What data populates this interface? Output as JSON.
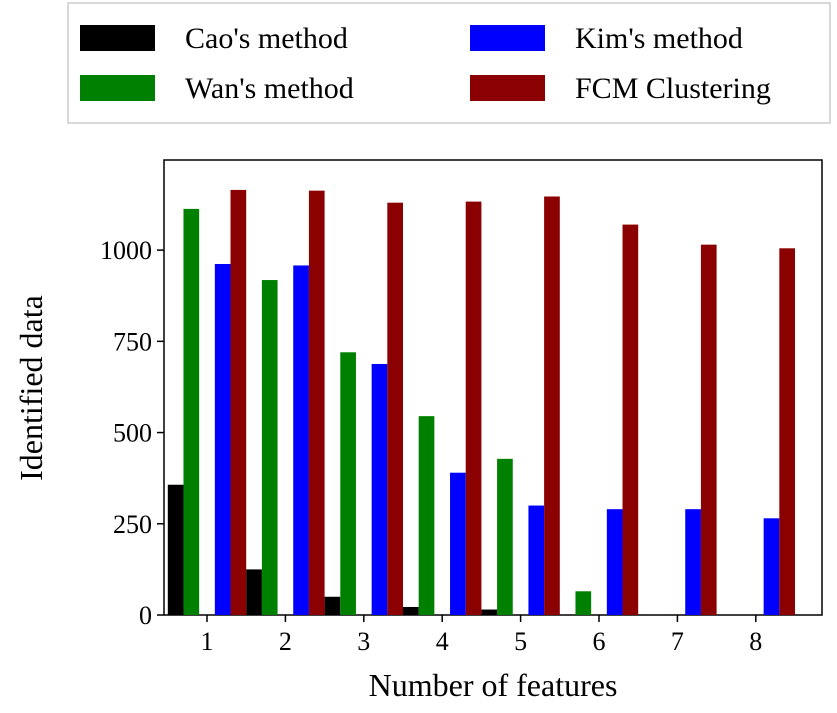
{
  "chart_data": {
    "type": "bar",
    "xlabel": "Number of features",
    "ylabel": "Identified data",
    "categories": [
      "1",
      "2",
      "3",
      "4",
      "5",
      "6",
      "7",
      "8"
    ],
    "series": [
      {
        "name": "Cao's method",
        "color": "#000000",
        "values": [
          357,
          125,
          50,
          22,
          15,
          0,
          0,
          0
        ]
      },
      {
        "name": "Wan's method",
        "color": "#008000",
        "values": [
          1113,
          918,
          720,
          545,
          428,
          65,
          0,
          0
        ]
      },
      {
        "name": "Kim's method",
        "color": "#0000ff",
        "values": [
          962,
          958,
          688,
          390,
          300,
          290,
          290,
          265
        ]
      },
      {
        "name": "FCM Clustering",
        "color": "#8b0000",
        "values": [
          1165,
          1163,
          1130,
          1133,
          1147,
          1070,
          1015,
          1005
        ]
      }
    ],
    "ylim": [
      0,
      1247
    ],
    "yticks": [
      0,
      250,
      500,
      750,
      1000
    ]
  }
}
